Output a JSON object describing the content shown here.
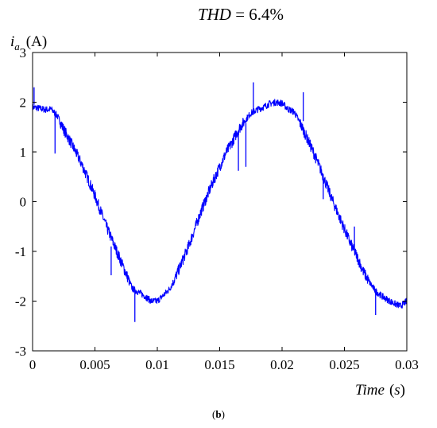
{
  "chart_data": {
    "type": "line",
    "title": "THD = 6.4%",
    "title_parts": {
      "name": "THD",
      "rest": " = 6.4%"
    },
    "ylabel": {
      "symbol": "i",
      "subscript": "a",
      "unit": "(A)"
    },
    "xlabel": {
      "name": "Time",
      "unit_open": "(",
      "unit_var": "s",
      "unit_close": ")"
    },
    "caption": {
      "open": "(",
      "letter": "b",
      "close": ")"
    },
    "xlim": [
      0,
      0.03
    ],
    "ylim": [
      -3,
      3
    ],
    "xticks": [
      0,
      0.005,
      0.01,
      0.015,
      0.02,
      0.025,
      0.03
    ],
    "xtick_labels": [
      "0",
      "0.005",
      "0.01",
      "0.015",
      "0.02",
      "0.025",
      "0.03"
    ],
    "yticks": [
      3,
      2,
      1,
      0,
      -1,
      -2,
      -3
    ],
    "ytick_labels": [
      "3",
      "2",
      "1",
      "0",
      "-1",
      "-2",
      "-3"
    ],
    "grid": false,
    "series": [
      {
        "color": "#0000ff",
        "x": [
          0,
          0.0005,
          0.001,
          0.0015,
          0.002,
          0.0025,
          0.003,
          0.0035,
          0.004,
          0.0045,
          0.005,
          0.0055,
          0.006,
          0.0065,
          0.007,
          0.0075,
          0.008,
          0.0085,
          0.009,
          0.0095,
          0.01,
          0.0105,
          0.011,
          0.0115,
          0.012,
          0.0125,
          0.013,
          0.0135,
          0.014,
          0.0145,
          0.015,
          0.0155,
          0.016,
          0.0165,
          0.017,
          0.0175,
          0.018,
          0.0185,
          0.019,
          0.0195,
          0.02,
          0.0205,
          0.021,
          0.0215,
          0.022,
          0.0225,
          0.023,
          0.0235,
          0.024,
          0.0245,
          0.025,
          0.0255,
          0.026,
          0.0265,
          0.027,
          0.0275,
          0.028,
          0.0285,
          0.029,
          0.0295,
          0.03
        ],
        "y": [
          1.9,
          1.88,
          1.85,
          1.86,
          1.72,
          1.45,
          1.22,
          0.98,
          0.72,
          0.42,
          0.12,
          -0.22,
          -0.55,
          -0.85,
          -1.15,
          -1.45,
          -1.75,
          -1.82,
          -1.9,
          -2.0,
          -2.0,
          -1.88,
          -1.75,
          -1.5,
          -1.2,
          -0.9,
          -0.55,
          -0.2,
          0.12,
          0.42,
          0.7,
          0.98,
          1.2,
          1.45,
          1.62,
          1.78,
          1.85,
          1.9,
          1.97,
          2.0,
          1.98,
          1.86,
          1.8,
          1.55,
          1.28,
          1.0,
          0.7,
          0.38,
          0.05,
          -0.25,
          -0.55,
          -0.85,
          -1.1,
          -1.4,
          -1.62,
          -1.8,
          -1.9,
          -1.98,
          -2.05,
          -2.1,
          -2.0
        ]
      }
    ],
    "spikes": [
      {
        "x": 0.00012,
        "y_from": 1.95,
        "y_to": 2.3
      },
      {
        "x": 0.0018,
        "y_from": 1.8,
        "y_to": 0.97
      },
      {
        "x": 0.0063,
        "y_from": -0.9,
        "y_to": -1.48
      },
      {
        "x": 0.0082,
        "y_from": -1.75,
        "y_to": -2.42
      },
      {
        "x": 0.0165,
        "y_from": 1.4,
        "y_to": 0.62
      },
      {
        "x": 0.0171,
        "y_from": 1.58,
        "y_to": 0.7
      },
      {
        "x": 0.0177,
        "y_from": 1.75,
        "y_to": 2.4
      },
      {
        "x": 0.0217,
        "y_from": 1.62,
        "y_to": 2.2
      },
      {
        "x": 0.0233,
        "y_from": 0.55,
        "y_to": 0.05
      },
      {
        "x": 0.0258,
        "y_from": -0.98,
        "y_to": -0.5
      },
      {
        "x": 0.0275,
        "y_from": -1.75,
        "y_to": -2.28
      }
    ]
  }
}
